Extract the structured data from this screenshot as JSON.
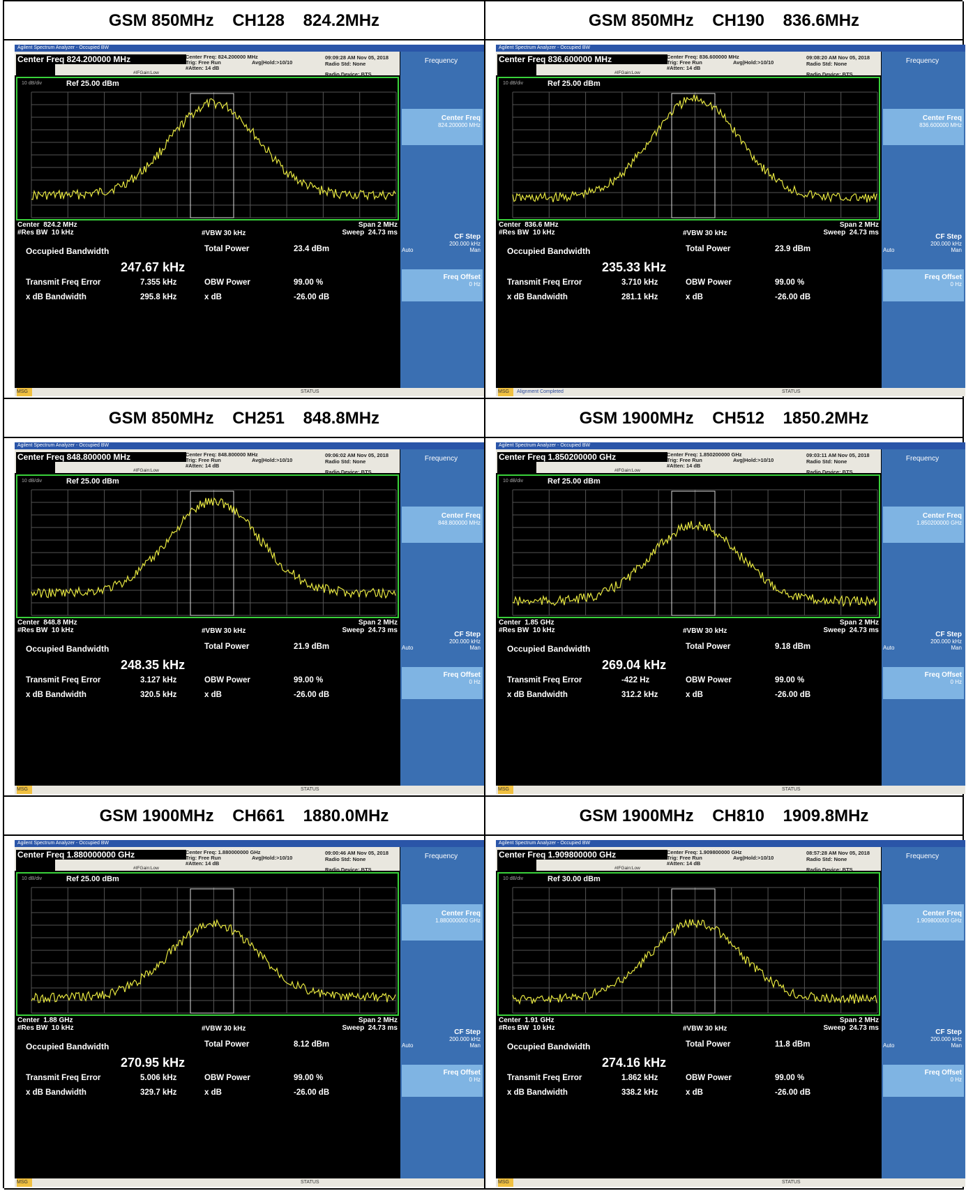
{
  "common": {
    "window_title": "Agilent Spectrum Analyzer - Occupied BW",
    "trig": "Trig: Free Run",
    "avg": "Avg|Hold:>10/10",
    "atten": "#Atten: 14 dB",
    "ifgain": "#IFGain:Low",
    "radio_std": "Radio Std: None",
    "radio_device": "Radio Device: BTS",
    "div": "10 dB/div",
    "log": "Log",
    "res_bw": "#Res BW  10 kHz",
    "vbw": "#VBW  30 kHz",
    "span": "Span 2 MHz",
    "sweep": "Sweep  24.73 ms",
    "occ_label": "Occupied Bandwidth",
    "total_power_label": "Total Power",
    "tfe_label": "Transmit Freq Error",
    "obw_power_label": "OBW Power",
    "xdb_bw_label": "x dB Bandwidth",
    "xdb_label": "x dB",
    "obw_power_value": "99.00 %",
    "xdb_value": "-26.00 dB",
    "side_title": "Frequency",
    "side_center": "Center Freq",
    "side_cfstep": "CF Step",
    "side_cfstep_val": "200.000 kHz",
    "side_auto": "Auto",
    "side_man": "Man",
    "side_offset": "Freq Offset",
    "side_offset_val": "0 Hz",
    "status": "STATUS",
    "msg": "MSG"
  },
  "panels": [
    {
      "title": "GSM 850MHz    CH128    824.2MHz",
      "cf": "Center Freq 824.200000 MHz",
      "cf2": "Center Freq: 824.200000 MHz",
      "time": "09:09:28 AM Nov 05, 2018",
      "ref": "Ref 25.00 dBm",
      "center": "Center  824.2 MHz",
      "side_cf": "824.200000 MHz",
      "occ": "247.67 kHz",
      "power": "23.4 dBm",
      "tfe": "7.355 kHz",
      "xdb_bw": "295.8 kHz",
      "note": ""
    },
    {
      "title": "GSM 850MHz    CH190    836.6MHz",
      "cf": "Center Freq 836.600000 MHz",
      "cf2": "Center Freq: 836.600000 MHz",
      "time": "09:08:20 AM Nov 05, 2018",
      "ref": "Ref 25.00 dBm",
      "center": "Center  836.6 MHz",
      "side_cf": "836.600000 MHz",
      "occ": "235.33 kHz",
      "power": "23.9 dBm",
      "tfe": "3.710 kHz",
      "xdb_bw": "281.1 kHz",
      "note": "Alignment Completed"
    },
    {
      "title": "GSM 850MHz    CH251    848.8MHz",
      "cf": "Center Freq 848.800000 MHz",
      "cf2": "Center Freq: 848.800000 MHz",
      "time": "09:06:02 AM Nov 05, 2018",
      "ref": "Ref 25.00 dBm",
      "center": "Center  848.8 MHz",
      "side_cf": "848.800000 MHz",
      "occ": "248.35 kHz",
      "power": "21.9 dBm",
      "tfe": "3.127 kHz",
      "xdb_bw": "320.5 kHz",
      "note": ""
    },
    {
      "title": "GSM 1900MHz    CH512    1850.2MHz",
      "cf": "Center Freq 1.850200000 GHz",
      "cf2": "Center Freq: 1.850200000 GHz",
      "time": "09:03:11 AM Nov 05, 2018",
      "ref": "Ref 25.00 dBm",
      "center": "Center  1.85 GHz",
      "side_cf": "1.850200000 GHz",
      "occ": "269.04 kHz",
      "power": "9.18 dBm",
      "tfe": "-422 Hz",
      "xdb_bw": "312.2 kHz",
      "note": ""
    },
    {
      "title": "GSM 1900MHz    CH661    1880.0MHz",
      "cf": "Center Freq 1.880000000 GHz",
      "cf2": "Center Freq: 1.880000000 GHz",
      "time": "09:00:46 AM Nov 05, 2018",
      "ref": "Ref 25.00 dBm",
      "center": "Center  1.88 GHz",
      "side_cf": "1.880000000 GHz",
      "occ": "270.95 kHz",
      "power": "8.12 dBm",
      "tfe": "5.006 kHz",
      "xdb_bw": "329.7 kHz",
      "note": ""
    },
    {
      "title": "GSM 1900MHz    CH810    1909.8MHz",
      "cf": "Center Freq 1.909800000 GHz",
      "cf2": "Center Freq: 1.909800000 GHz",
      "time": "08:57:28 AM Nov 05, 2018",
      "ref": "Ref 30.00 dBm",
      "center": "Center  1.91 GHz",
      "side_cf": "1.909800000 GHz",
      "occ": "274.16 kHz",
      "power": "11.8 dBm",
      "tfe": "1.862 kHz",
      "xdb_bw": "338.2 kHz",
      "note": ""
    }
  ],
  "colors": {
    "trace": "#e6e640",
    "grid": "#555555",
    "plot_border": "#39d13a",
    "side": "#3a6fb2",
    "softkey_hl": "#7fb4e3",
    "title_bar": "#2a55a8"
  }
}
